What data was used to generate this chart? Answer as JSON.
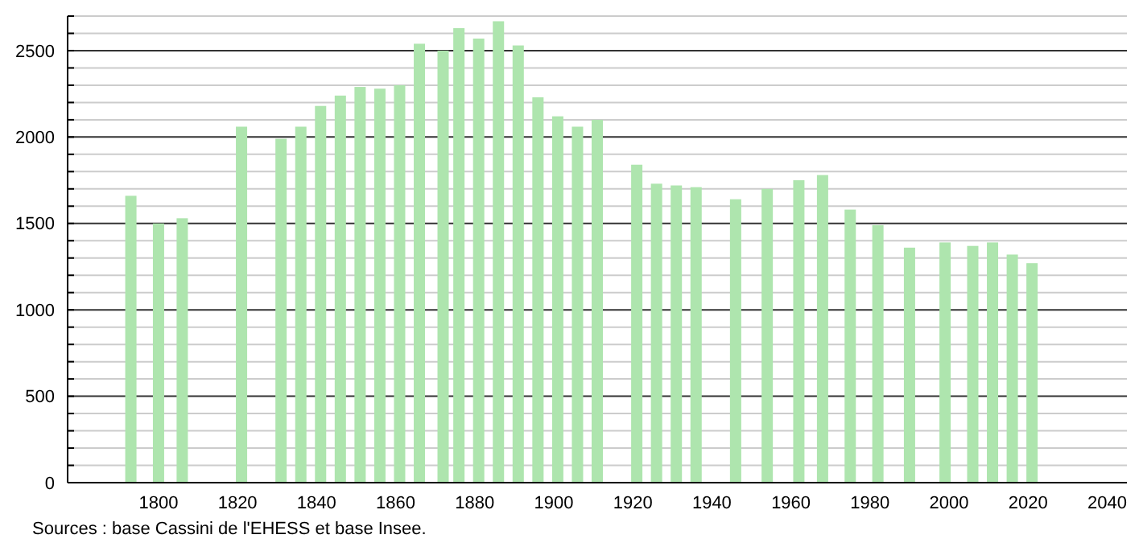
{
  "chart_data": {
    "type": "bar",
    "color": "#aee5ae",
    "x": [
      1793,
      1800,
      1806,
      1821,
      1831,
      1836,
      1841,
      1846,
      1851,
      1856,
      1861,
      1866,
      1872,
      1876,
      1881,
      1886,
      1891,
      1896,
      1901,
      1906,
      1911,
      1921,
      1926,
      1931,
      1936,
      1946,
      1954,
      1962,
      1968,
      1975,
      1982,
      1990,
      1999,
      2006,
      2011,
      2016,
      2021
    ],
    "values": [
      1660,
      1500,
      1530,
      2060,
      1990,
      2060,
      2180,
      2240,
      2290,
      2280,
      2300,
      2540,
      2500,
      2630,
      2570,
      2670,
      2530,
      2230,
      2120,
      2060,
      2100,
      1840,
      1730,
      1720,
      1710,
      1640,
      1700,
      1750,
      1780,
      1580,
      1490,
      1360,
      1390,
      1370,
      1390,
      1320,
      1270
    ],
    "xlim": [
      1777,
      2045
    ],
    "xticks": [
      1800,
      1820,
      1840,
      1860,
      1880,
      1900,
      1920,
      1940,
      1960,
      1980,
      2000,
      2020,
      2040
    ],
    "ylim": [
      0,
      2700
    ],
    "yticks": [
      0,
      {
        "value": 100,
        "label": null
      },
      {
        "value": 200,
        "label": null
      },
      {
        "value": 300,
        "label": null
      },
      {
        "value": 400,
        "label": null
      },
      500,
      {
        "value": 600,
        "label": null
      },
      {
        "value": 700,
        "label": null
      },
      {
        "value": 800,
        "label": null
      },
      {
        "value": 900,
        "label": null
      },
      1000,
      {
        "value": 1100,
        "label": null
      },
      {
        "value": 1200,
        "label": null
      },
      {
        "value": 1300,
        "label": null
      },
      {
        "value": 1400,
        "label": null
      },
      1500,
      {
        "value": 1600,
        "label": null
      },
      {
        "value": 1700,
        "label": null
      },
      {
        "value": 1800,
        "label": null
      },
      {
        "value": 1900,
        "label": null
      },
      2000,
      {
        "value": 2100,
        "label": null
      },
      {
        "value": 2200,
        "label": null
      },
      {
        "value": 2300,
        "label": null
      },
      {
        "value": 2400,
        "label": null
      },
      2500,
      {
        "value": 2600,
        "label": null
      },
      {
        "value": 2700,
        "label": null
      }
    ],
    "grid": "y",
    "annotations": [
      "Sources : base Cassini de l'EHESS et base Insee."
    ]
  }
}
